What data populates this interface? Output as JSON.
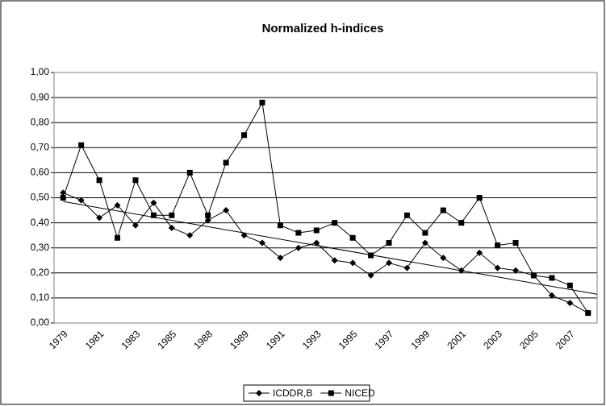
{
  "chart_data": {
    "type": "line",
    "title": "Normalized h-indices",
    "categories": [
      "1979",
      null,
      "1981",
      null,
      "1983",
      null,
      "1985",
      null,
      "1988",
      null,
      "1989",
      null,
      "1991",
      null,
      "1993",
      null,
      "1995",
      null,
      "1997",
      null,
      "1999",
      null,
      "2001",
      null,
      "2003",
      null,
      "2005",
      null,
      "2007",
      null
    ],
    "series": [
      {
        "name": "ICDDR,B",
        "color": "#000000",
        "marker": "diamond",
        "values": [
          0.52,
          0.49,
          0.42,
          0.47,
          0.39,
          0.48,
          0.38,
          0.35,
          0.41,
          0.45,
          0.35,
          0.32,
          0.26,
          0.3,
          0.32,
          0.25,
          0.24,
          0.19,
          0.24,
          0.22,
          0.32,
          0.26,
          0.21,
          0.28,
          0.22,
          0.21,
          0.19,
          0.11,
          0.08,
          0.04
        ]
      },
      {
        "name": "NICED",
        "color": "#000000",
        "marker": "square",
        "values": [
          0.5,
          0.71,
          0.57,
          0.34,
          0.57,
          0.43,
          0.43,
          0.6,
          0.43,
          0.64,
          0.75,
          0.88,
          0.39,
          0.36,
          0.37,
          0.4,
          0.34,
          0.27,
          0.32,
          0.43,
          0.36,
          0.45,
          0.4,
          0.5,
          0.31,
          0.32,
          0.19,
          0.18,
          0.15,
          0.04
        ]
      }
    ],
    "trendline": [
      0.485,
      0.115
    ],
    "ylim": [
      0,
      1
    ],
    "yticks": [
      {
        "value": 0,
        "label": "0,00"
      },
      {
        "value": 0.1,
        "label": "0,10"
      },
      {
        "value": 0.2,
        "label": "0,20"
      },
      {
        "value": 0.3,
        "label": "0,30"
      },
      {
        "value": 0.4,
        "label": "0,40"
      },
      {
        "value": 0.5,
        "label": "0,50"
      },
      {
        "value": 0.6,
        "label": "0,60"
      },
      {
        "value": 0.7,
        "label": "0,70"
      },
      {
        "value": 0.8,
        "label": "0,80"
      },
      {
        "value": 0.9,
        "label": "0,90"
      },
      {
        "value": 1,
        "label": "1,00"
      }
    ],
    "grid": true,
    "legend": "bottom"
  }
}
